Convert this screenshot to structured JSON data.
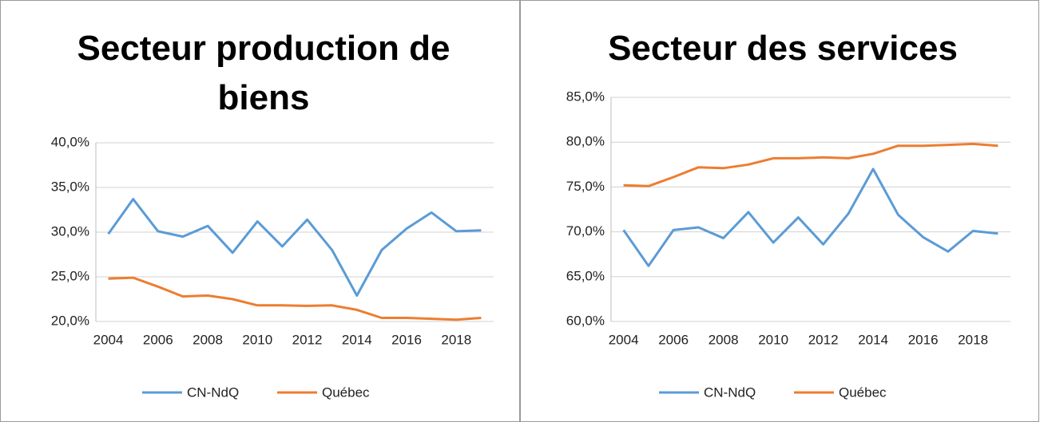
{
  "chart_data": [
    {
      "type": "line",
      "title": "Secteur production de biens",
      "categories": [
        "2004",
        null,
        "2006",
        null,
        "2008",
        null,
        "2010",
        null,
        "2012",
        null,
        "2014",
        null,
        "2016",
        null,
        "2018",
        null
      ],
      "series": [
        {
          "name": "CN-NdQ",
          "color": "#5b9bd5",
          "values": [
            29.8,
            33.7,
            30.1,
            29.5,
            30.7,
            27.7,
            31.2,
            28.4,
            31.4,
            28.0,
            22.9,
            28.0,
            30.4,
            32.2,
            30.1,
            30.2
          ]
        },
        {
          "name": "Québec",
          "color": "#ed7d31",
          "values": [
            24.8,
            24.9,
            23.9,
            22.8,
            22.9,
            22.5,
            21.8,
            21.8,
            21.75,
            21.8,
            21.3,
            20.4,
            20.4,
            20.3,
            20.2,
            20.4
          ]
        }
      ],
      "ylim": [
        20,
        40
      ],
      "yticks": [
        {
          "value": 20,
          "label": "20,0%"
        },
        {
          "value": 25,
          "label": "25,0%"
        },
        {
          "value": 30,
          "label": "30,0%"
        },
        {
          "value": 35,
          "label": "35,0%"
        },
        {
          "value": 40,
          "label": "40,0%"
        }
      ],
      "grid": true,
      "legend": "bottom"
    },
    {
      "type": "line",
      "title": "Secteur des services",
      "categories": [
        "2004",
        null,
        "2006",
        null,
        "2008",
        null,
        "2010",
        null,
        "2012",
        null,
        "2014",
        null,
        "2016",
        null,
        "2018",
        null
      ],
      "series": [
        {
          "name": "CN-NdQ",
          "color": "#5b9bd5",
          "values": [
            70.2,
            66.2,
            70.2,
            70.5,
            69.3,
            72.2,
            68.8,
            71.6,
            68.6,
            72.0,
            77.0,
            71.9,
            69.4,
            67.8,
            70.1,
            69.8
          ]
        },
        {
          "name": "Québec",
          "color": "#ed7d31",
          "values": [
            75.2,
            75.1,
            76.1,
            77.2,
            77.1,
            77.5,
            78.2,
            78.2,
            78.3,
            78.2,
            78.7,
            79.6,
            79.6,
            79.7,
            79.8,
            79.6
          ]
        }
      ],
      "ylim": [
        60,
        85
      ],
      "yticks": [
        {
          "value": 60,
          "label": "60,0%"
        },
        {
          "value": 65,
          "label": "65,0%"
        },
        {
          "value": 70,
          "label": "70,0%"
        },
        {
          "value": 75,
          "label": "75,0%"
        },
        {
          "value": 80,
          "label": "80,0%"
        },
        {
          "value": 85,
          "label": "85,0%"
        }
      ],
      "grid": true,
      "legend": "bottom"
    }
  ]
}
